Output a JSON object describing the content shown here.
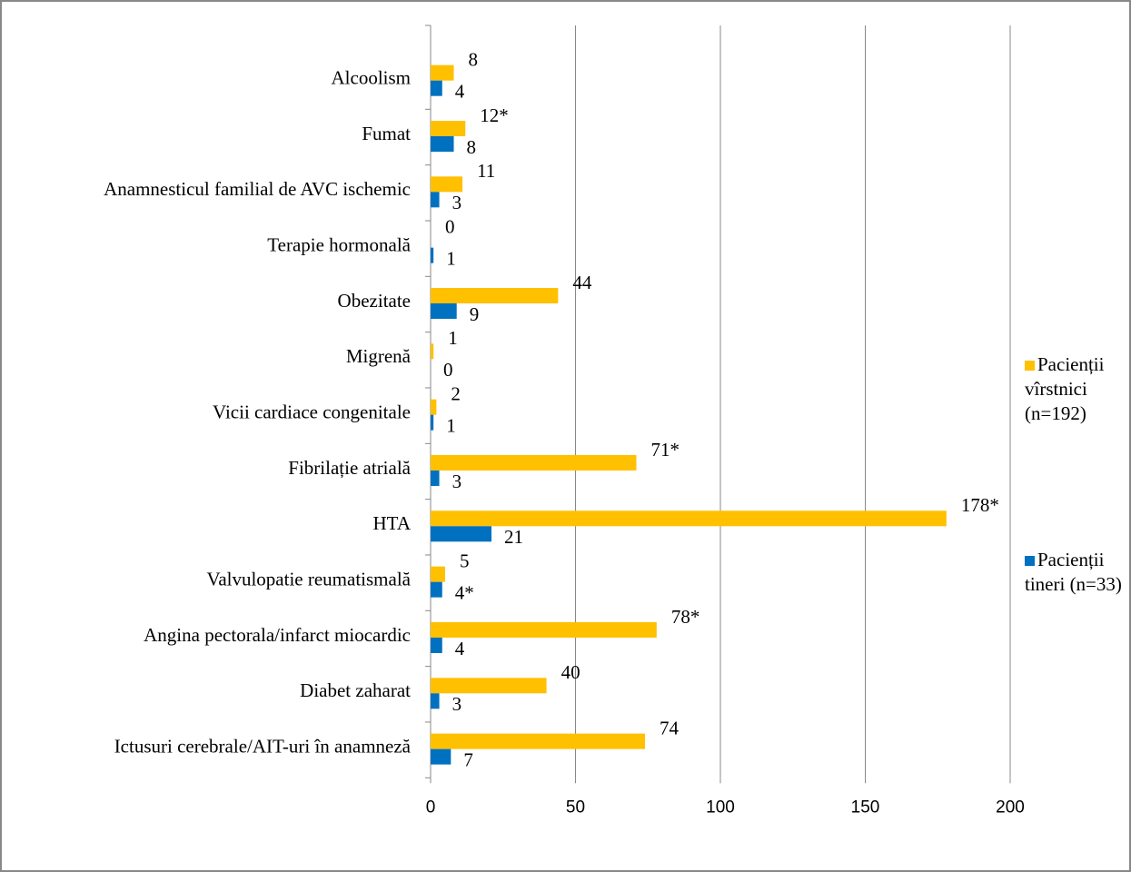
{
  "chart_data": {
    "type": "bar",
    "orientation": "horizontal",
    "categories": [
      "Alcoolism",
      "Fumat",
      "Anamnesticul familial de AVC ischemic",
      "Terapie hormonală",
      "Obezitate",
      "Migrenă",
      "Vicii cardiace congenitale",
      "Fibrilație atrială",
      "HTA",
      "Valvulopatie reumatismală",
      "Angina pectorala/infarct miocardic",
      "Diabet zaharat",
      "Ictusuri cerebrale/AIT-uri în anamneză"
    ],
    "series": [
      {
        "name": "Pacienții vîrstnici (n=192)",
        "color": "#ffc000",
        "values": [
          8,
          12,
          11,
          0,
          44,
          1,
          2,
          71,
          178,
          5,
          78,
          40,
          74
        ],
        "value_labels": [
          "8",
          "12*",
          "11",
          "0",
          "44",
          "1",
          "2",
          "71*",
          "178*",
          "5",
          "78*",
          "40",
          "74"
        ]
      },
      {
        "name": "Pacienții tineri (n=33)",
        "color": "#0070c0",
        "values": [
          4,
          8,
          3,
          1,
          9,
          0,
          1,
          3,
          21,
          4,
          4,
          3,
          7
        ],
        "value_labels": [
          "4",
          "8",
          "3",
          "1",
          "9",
          "0",
          "1",
          "3",
          "21",
          "4*",
          "4",
          "3",
          "7"
        ]
      }
    ],
    "xlim": [
      0,
      200
    ],
    "xticks": [
      0,
      50,
      100,
      150,
      200
    ],
    "grid": true
  }
}
